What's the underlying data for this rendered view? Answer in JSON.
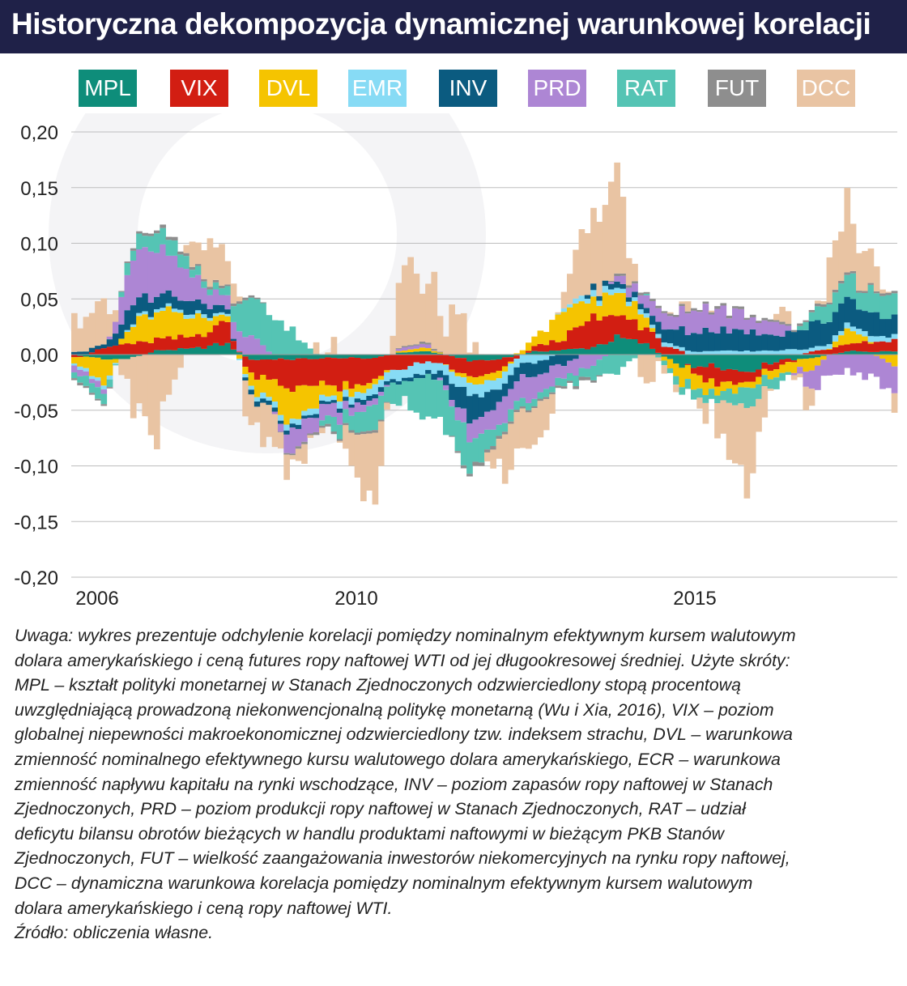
{
  "title": "Historyczna dekompozycja dynamicznej warunkowej korelacji",
  "colors": {
    "MPL": "#0e8d7a",
    "VIX": "#d21e12",
    "DVL": "#f5c400",
    "EMR": "#87dbf5",
    "INV": "#0b5b80",
    "PRD": "#ad86d4",
    "RAT": "#55c4b4",
    "FUT": "#8e8e8e",
    "DCC": "#e9c4a3",
    "title_bg": "#1f2148"
  },
  "legend": [
    "MPL",
    "VIX",
    "DVL",
    "EMR",
    "INV",
    "PRD",
    "RAT",
    "FUT",
    "DCC"
  ],
  "chart_data": {
    "type": "bar",
    "stacked": true,
    "title": "Historyczna dekompozycja dynamicznej warunkowej korelacji",
    "xlabel": "",
    "ylabel": "",
    "ylim": [
      -0.2,
      0.2
    ],
    "yticks": [
      "0,20",
      "0,15",
      "0,10",
      "0,05",
      "0,00",
      "-0,05",
      "-0,10",
      "-0,15",
      "-0,20"
    ],
    "xticks": [
      "2006",
      "2010",
      "2015"
    ],
    "xrange": [
      2006.0,
      2018.25
    ],
    "grid": "horizontal",
    "legend_position": "top",
    "series_order": [
      "MPL",
      "VIX",
      "DVL",
      "EMR",
      "INV",
      "PRD",
      "RAT",
      "FUT",
      "DCC"
    ],
    "keyframes": [
      {
        "t": 2006.0,
        "MPL": 0.0,
        "VIX": -0.004,
        "DVL": -0.005,
        "EMR": -0.002,
        "INV": 0.003,
        "PRD": -0.005,
        "RAT": -0.006,
        "FUT": -0.002,
        "DCC": 0.03
      },
      {
        "t": 2006.5,
        "MPL": -0.004,
        "VIX": 0.006,
        "DVL": -0.02,
        "EMR": -0.004,
        "INV": 0.004,
        "PRD": -0.005,
        "RAT": -0.01,
        "FUT": -0.002,
        "DCC": 0.05
      },
      {
        "t": 2006.85,
        "MPL": -0.004,
        "VIX": 0.01,
        "DVL": 0.015,
        "EMR": 0.002,
        "INV": 0.015,
        "PRD": 0.035,
        "RAT": 0.01,
        "FUT": 0.002,
        "DCC": -0.035
      },
      {
        "t": 2007.3,
        "MPL": 0.004,
        "VIX": 0.01,
        "DVL": 0.03,
        "EMR": 0.003,
        "INV": 0.012,
        "PRD": 0.04,
        "RAT": 0.015,
        "FUT": 0.003,
        "DCC": -0.06
      },
      {
        "t": 2007.8,
        "MPL": 0.005,
        "VIX": 0.01,
        "DVL": 0.02,
        "EMR": 0.003,
        "INV": 0.01,
        "PRD": 0.02,
        "RAT": 0.008,
        "FUT": 0.002,
        "DCC": 0.03
      },
      {
        "t": 2008.3,
        "MPL": 0.01,
        "VIX": 0.02,
        "DVL": 0.005,
        "EMR": 0.002,
        "INV": 0.005,
        "PRD": 0.01,
        "RAT": 0.005,
        "FUT": 0.002,
        "DCC": 0.025
      },
      {
        "t": 2008.65,
        "MPL": -0.005,
        "VIX": -0.015,
        "DVL": -0.01,
        "EMR": -0.004,
        "INV": -0.004,
        "PRD": 0.02,
        "RAT": 0.045,
        "FUT": 0.002,
        "DCC": -0.03
      },
      {
        "t": 2009.3,
        "MPL": -0.004,
        "VIX": -0.025,
        "DVL": -0.03,
        "EMR": -0.005,
        "INV": -0.003,
        "PRD": -0.02,
        "RAT": 0.02,
        "FUT": -0.002,
        "DCC": -0.01
      },
      {
        "t": 2009.9,
        "MPL": -0.003,
        "VIX": -0.025,
        "DVL": -0.01,
        "EMR": -0.005,
        "INV": -0.003,
        "PRD": -0.01,
        "RAT": -0.015,
        "FUT": -0.002,
        "DCC": 0.01
      },
      {
        "t": 2010.5,
        "MPL": -0.003,
        "VIX": -0.02,
        "DVL": -0.005,
        "EMR": -0.008,
        "INV": -0.004,
        "PRD": -0.005,
        "RAT": -0.02,
        "FUT": -0.002,
        "DCC": -0.07
      },
      {
        "t": 2010.9,
        "MPL": 0.002,
        "VIX": -0.012,
        "DVL": 0.002,
        "EMR": -0.01,
        "INV": -0.003,
        "PRD": 0.003,
        "RAT": -0.015,
        "FUT": 0.001,
        "DCC": 0.07
      },
      {
        "t": 2011.3,
        "MPL": 0.003,
        "VIX": -0.005,
        "DVL": 0.003,
        "EMR": -0.008,
        "INV": -0.004,
        "PRD": 0.003,
        "RAT": -0.04,
        "FUT": 0.002,
        "DCC": 0.05
      },
      {
        "t": 2011.9,
        "MPL": -0.005,
        "VIX": -0.015,
        "DVL": -0.005,
        "EMR": -0.01,
        "INV": -0.02,
        "PRD": -0.015,
        "RAT": -0.03,
        "FUT": -0.003,
        "DCC": 0.02
      },
      {
        "t": 2012.3,
        "MPL": -0.005,
        "VIX": -0.01,
        "DVL": -0.008,
        "EMR": -0.01,
        "INV": -0.015,
        "PRD": -0.02,
        "RAT": -0.01,
        "FUT": -0.003,
        "DCC": -0.03
      },
      {
        "t": 2012.9,
        "MPL": 0.003,
        "VIX": 0.005,
        "DVL": 0.01,
        "EMR": -0.008,
        "INV": -0.01,
        "PRD": -0.02,
        "RAT": -0.008,
        "FUT": -0.002,
        "DCC": -0.04
      },
      {
        "t": 2013.3,
        "MPL": 0.004,
        "VIX": 0.01,
        "DVL": 0.025,
        "EMR": 0.003,
        "INV": -0.01,
        "PRD": -0.015,
        "RAT": -0.006,
        "FUT": -0.002,
        "DCC": 0.02
      },
      {
        "t": 2013.7,
        "MPL": 0.006,
        "VIX": 0.025,
        "DVL": 0.015,
        "EMR": 0.005,
        "INV": 0.005,
        "PRD": -0.01,
        "RAT": -0.01,
        "FUT": -0.003,
        "DCC": 0.06
      },
      {
        "t": 2014.1,
        "MPL": 0.015,
        "VIX": 0.02,
        "DVL": 0.02,
        "EMR": 0.005,
        "INV": 0.005,
        "PRD": 0.005,
        "RAT": -0.015,
        "FUT": 0.002,
        "DCC": 0.08
      },
      {
        "t": 2014.5,
        "MPL": 0.01,
        "VIX": 0.015,
        "DVL": 0.01,
        "EMR": 0.004,
        "INV": 0.005,
        "PRD": 0.01,
        "RAT": 0.002,
        "FUT": 0.002,
        "DCC": -0.03
      },
      {
        "t": 2015.0,
        "MPL": -0.01,
        "VIX": 0.005,
        "DVL": -0.015,
        "EMR": 0.003,
        "INV": 0.015,
        "PRD": 0.015,
        "RAT": -0.008,
        "FUT": 0.002,
        "DCC": 0.01
      },
      {
        "t": 2015.5,
        "MPL": -0.01,
        "VIX": -0.015,
        "DVL": -0.01,
        "EMR": 0.003,
        "INV": 0.02,
        "PRD": 0.02,
        "RAT": -0.008,
        "FUT": 0.002,
        "DCC": -0.01
      },
      {
        "t": 2016.0,
        "MPL": -0.015,
        "VIX": -0.01,
        "DVL": -0.005,
        "EMR": 0.003,
        "INV": 0.018,
        "PRD": 0.015,
        "RAT": -0.015,
        "FUT": 0.002,
        "DCC": -0.06
      },
      {
        "t": 2016.5,
        "MPL": -0.005,
        "VIX": -0.005,
        "DVL": -0.008,
        "EMR": 0.004,
        "INV": 0.015,
        "PRD": 0.012,
        "RAT": -0.008,
        "FUT": 0.002,
        "DCC": 0.01
      },
      {
        "t": 2017.0,
        "MPL": -0.003,
        "VIX": 0.003,
        "DVL": -0.01,
        "EMR": 0.004,
        "INV": 0.02,
        "PRD": -0.02,
        "RAT": 0.01,
        "FUT": 0.002,
        "DCC": -0.02
      },
      {
        "t": 2017.5,
        "MPL": 0.003,
        "VIX": 0.008,
        "DVL": 0.012,
        "EMR": 0.005,
        "INV": 0.025,
        "PRD": -0.015,
        "RAT": 0.02,
        "FUT": 0.002,
        "DCC": 0.07
      },
      {
        "t": 2018.25,
        "MPL": 0.003,
        "VIX": 0.01,
        "DVL": -0.01,
        "EMR": 0.004,
        "INV": 0.015,
        "PRD": -0.03,
        "RAT": 0.02,
        "FUT": 0.002,
        "DCC": -0.01
      }
    ],
    "weekly_bar_count": 140,
    "annotations": []
  },
  "note": {
    "lines": [
      "Uwaga: wykres prezentuje odchylenie korelacji pomiędzy nominalnym efektywnym kursem walutowym",
      "dolara amerykańskiego i ceną futures ropy naftowej WTI od jej długookresowej średniej. Użyte skróty:",
      "MPL – kształt polityki monetarnej w Stanach Zjednoczonych odzwierciedlony stopą procentową",
      "uwzględniającą prowadzoną niekonwencjonalną politykę monetarną (Wu i Xia, 2016), VIX – poziom",
      "globalnej niepewności makroekonomicznej odzwierciedlony tzw. indeksem strachu, DVL – warunkowa",
      "zmienność nominalnego efektywnego kursu walutowego dolara amerykańskiego, ECR – warunkowa",
      "zmienność napływu kapitału na rynki wschodzące, INV – poziom zapasów ropy naftowej w Stanach",
      "Zjednoczonych, PRD – poziom produkcji ropy naftowej w Stanach Zjednoczonych, RAT – udział",
      "deficytu bilansu obrotów bieżących w handlu produktami naftowymi w bieżącym PKB Stanów",
      "Zjednoczonych, FUT – wielkość zaangażowania inwestorów niekomercyjnych na rynku ropy naftowej,",
      "DCC – dynamiczna  warunkowa korelacja pomiędzy nominalnym efektywnym kursem walutowym",
      "dolara amerykańskiego i ceną ropy naftowej WTI."
    ],
    "source": "Źródło: obliczenia własne."
  }
}
